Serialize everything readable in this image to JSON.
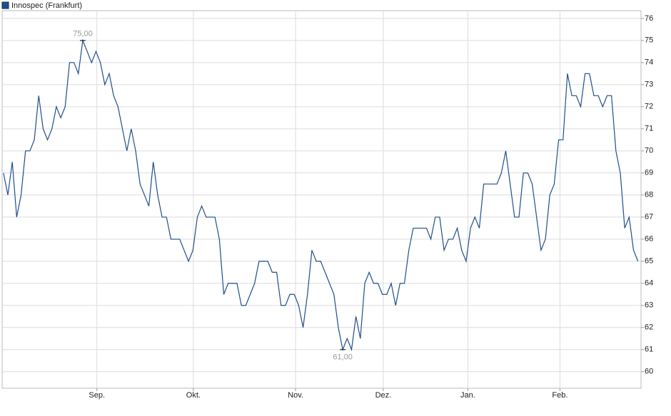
{
  "chart_data": {
    "type": "line",
    "title": "Innospec (Frankfurt)",
    "x": [
      0,
      1,
      2,
      3,
      4,
      5,
      6,
      7,
      8,
      9,
      10,
      11,
      12,
      13,
      14,
      15,
      16,
      17,
      18,
      19,
      20,
      21,
      22,
      23,
      24,
      25,
      26,
      27,
      28,
      29,
      30,
      31,
      32,
      33,
      34,
      35,
      36,
      37,
      38,
      39,
      40,
      41,
      42,
      43,
      44,
      45,
      46,
      47,
      48,
      49,
      50,
      51,
      52,
      53,
      54,
      55,
      56,
      57,
      58,
      59,
      60,
      61,
      62,
      63,
      64,
      65,
      66,
      67,
      68,
      69,
      70,
      71,
      72,
      73,
      74,
      75,
      76,
      77,
      78,
      79,
      80,
      81,
      82,
      83,
      84,
      85,
      86,
      87,
      88,
      89,
      90,
      91,
      92,
      93,
      94,
      95,
      96,
      97,
      98,
      99,
      100,
      101,
      102,
      103,
      104,
      105,
      106,
      107,
      108,
      109,
      110,
      111,
      112,
      113,
      114,
      115,
      116,
      117,
      118,
      119,
      120,
      121,
      122,
      123,
      124,
      125,
      126,
      127,
      128,
      129,
      130,
      131,
      132,
      133,
      134,
      135,
      136,
      137,
      138,
      139,
      140,
      141,
      142,
      143,
      144
    ],
    "series": [
      {
        "name": "Innospec (Frankfurt)",
        "color": "#1f4e8c",
        "values": [
          69,
          68,
          69.5,
          67,
          68,
          70,
          70,
          70.5,
          72.5,
          71,
          70.5,
          71,
          72,
          71.5,
          72,
          74,
          74,
          73.5,
          75,
          74.5,
          74,
          74.5,
          74,
          73,
          73.5,
          72.5,
          72,
          71,
          70,
          71,
          70,
          68.5,
          68,
          67.5,
          69.5,
          68,
          67,
          67,
          66,
          66,
          66,
          65.5,
          65,
          65.5,
          67,
          67.5,
          67,
          67,
          67,
          66,
          63.5,
          64,
          64,
          64,
          63,
          63,
          63.5,
          64,
          65,
          65,
          65,
          64.5,
          64.5,
          63,
          63,
          63.5,
          63.5,
          63,
          62,
          63.5,
          65.5,
          65,
          65,
          64.5,
          64,
          63.5,
          62,
          61,
          61.5,
          61,
          62.5,
          61.5,
          64,
          64.5,
          64,
          64,
          63.5,
          63.5,
          64,
          63,
          64,
          64,
          65.5,
          66.5,
          66.5,
          66.5,
          66.5,
          66,
          67,
          67,
          65.5,
          66,
          66,
          66.5,
          65.5,
          65,
          66.5,
          67,
          66.5,
          68.5,
          68.5,
          68.5,
          68.5,
          69,
          70,
          68.5,
          67,
          67,
          69,
          69,
          68.5,
          67,
          65.5,
          66,
          68,
          68.5,
          70.5,
          70.5,
          73.5,
          72.5,
          72.5,
          72,
          73.5,
          73.5,
          72.5,
          72.5,
          72,
          72.5,
          72.5,
          70,
          69,
          66.5,
          67,
          65.5,
          65
        ]
      }
    ],
    "annotations": [
      {
        "x": 18,
        "value": 75,
        "label": "75,00"
      },
      {
        "x": 77,
        "value": 61,
        "label": "61,00"
      }
    ],
    "xlim": [
      -0.3,
      144.7
    ],
    "xticks": [
      {
        "value": 21.2,
        "label": "Sep."
      },
      {
        "value": 43.1,
        "label": "Okt."
      },
      {
        "value": 66.3,
        "label": "Nov."
      },
      {
        "value": 86.2,
        "label": "Dez."
      },
      {
        "value": 105.4,
        "label": "Jan."
      },
      {
        "value": 126.3,
        "label": "Feb."
      }
    ],
    "ylim": [
      59.25,
      76.35
    ],
    "yticks": [
      60,
      61,
      62,
      63,
      64,
      65,
      66,
      67,
      68,
      69,
      70,
      71,
      72,
      73,
      74,
      75,
      76
    ],
    "grid": true
  }
}
